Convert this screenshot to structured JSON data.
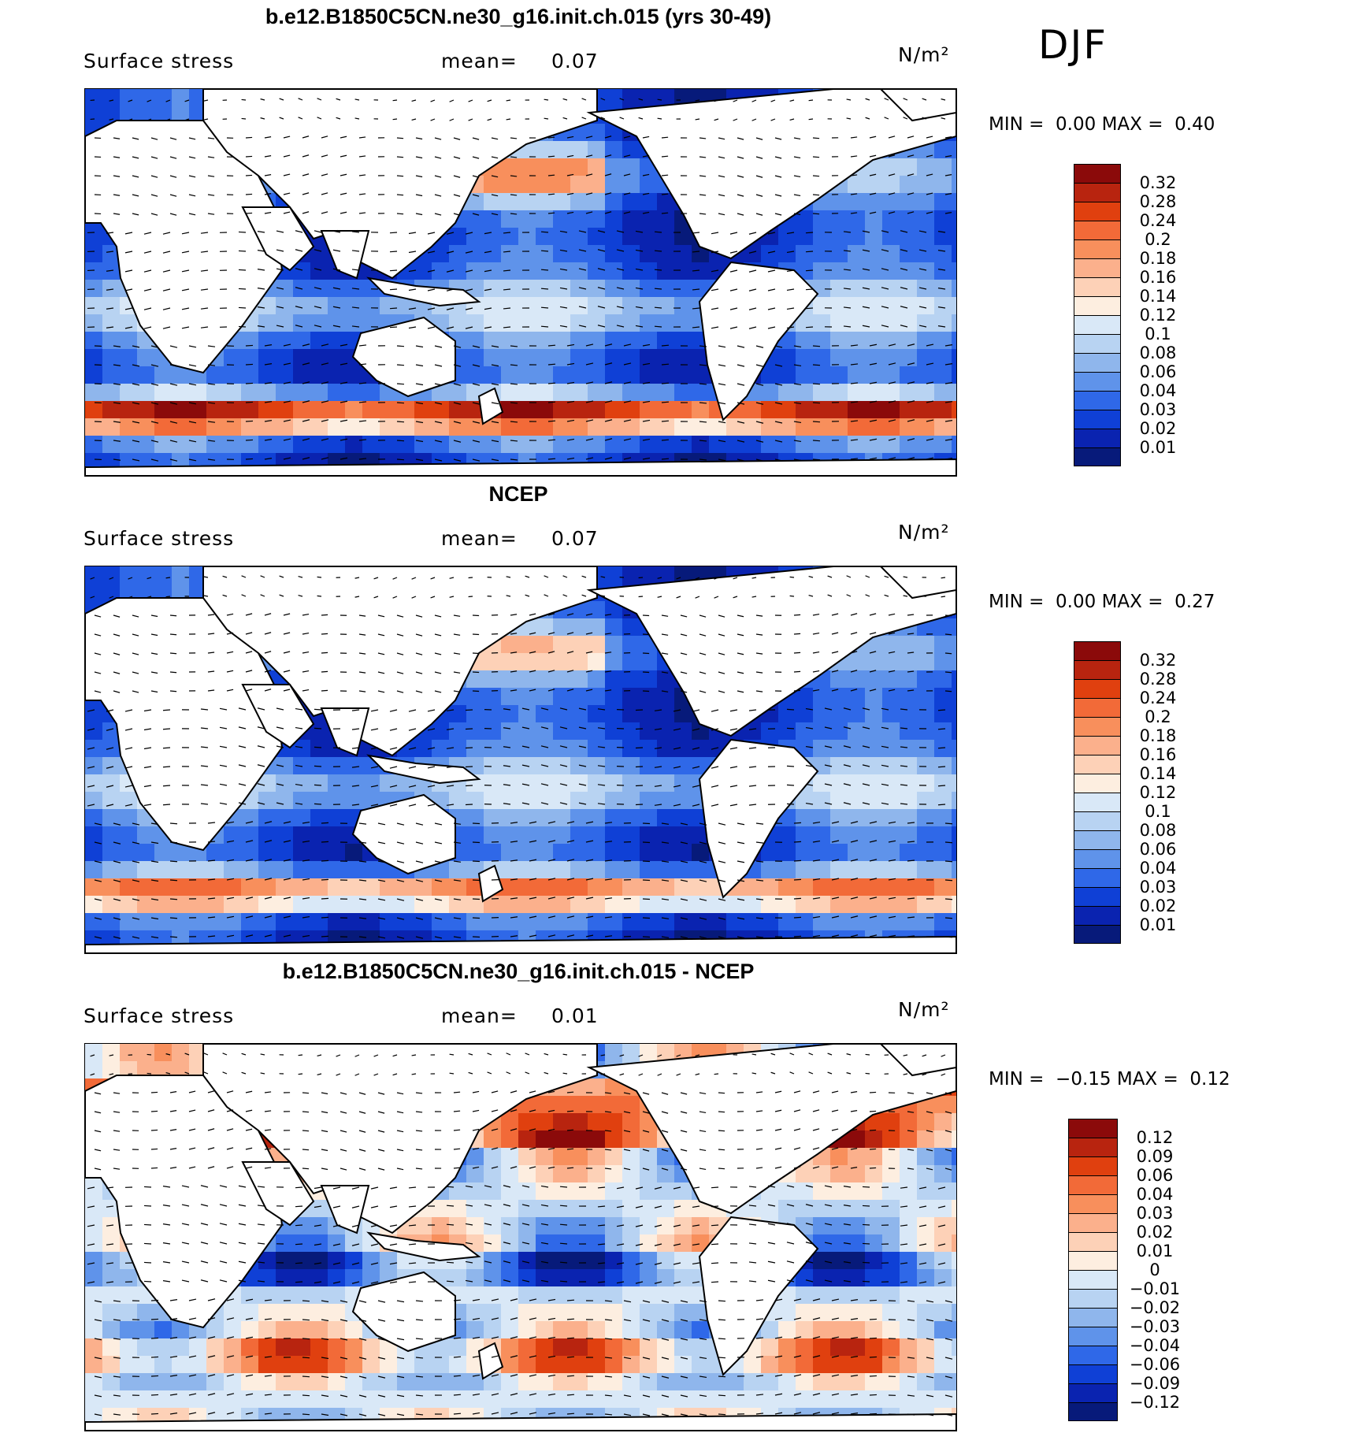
{
  "season": "DJF",
  "chart_data": [
    {
      "type": "heatmap",
      "title": "b.e12.B1850C5CN.ne30_g16.init.ch.015 (yrs 30-49)",
      "variable": "Surface stress",
      "mean_label": "mean=",
      "mean": "0.07",
      "units": "N/m²",
      "min_label": "MIN =",
      "min": "0.00",
      "max_label": "MAX =",
      "max": "0.40",
      "colorbar_ticks": [
        "0.32",
        "0.28",
        "0.24",
        "0.2",
        "0.18",
        "0.16",
        "0.14",
        "0.12",
        "0.1",
        "0.08",
        "0.06",
        "0.04",
        "0.03",
        "0.02",
        "0.01"
      ],
      "colorbar_colors": [
        "#8b0a0a",
        "#b8240f",
        "#e0400f",
        "#f26a38",
        "#f88f5c",
        "#fbb08c",
        "#fdd1b7",
        "#fdeee0",
        "#d9e8f7",
        "#b8d3f2",
        "#8fb6ec",
        "#5f93ea",
        "#2f68e8",
        "#0f40d6",
        "#0a23b0",
        "#071a7a"
      ]
    },
    {
      "type": "heatmap",
      "title": "NCEP",
      "variable": "Surface stress",
      "mean_label": "mean=",
      "mean": "0.07",
      "units": "N/m²",
      "min_label": "MIN =",
      "min": "0.00",
      "max_label": "MAX =",
      "max": "0.27",
      "colorbar_ticks": [
        "0.32",
        "0.28",
        "0.24",
        "0.2",
        "0.18",
        "0.16",
        "0.14",
        "0.12",
        "0.1",
        "0.08",
        "0.06",
        "0.04",
        "0.03",
        "0.02",
        "0.01"
      ],
      "colorbar_colors": [
        "#8b0a0a",
        "#b8240f",
        "#e0400f",
        "#f26a38",
        "#f88f5c",
        "#fbb08c",
        "#fdd1b7",
        "#fdeee0",
        "#d9e8f7",
        "#b8d3f2",
        "#8fb6ec",
        "#5f93ea",
        "#2f68e8",
        "#0f40d6",
        "#0a23b0",
        "#071a7a"
      ]
    },
    {
      "type": "heatmap",
      "title": "b.e12.B1850C5CN.ne30_g16.init.ch.015 - NCEP",
      "variable": "Surface stress",
      "mean_label": "mean=",
      "mean": "0.01",
      "units": "N/m²",
      "min_label": "MIN =",
      "min": "−0.15",
      "max_label": "MAX =",
      "max": "0.12",
      "colorbar_ticks": [
        "0.12",
        "0.09",
        "0.06",
        "0.04",
        "0.03",
        "0.02",
        "0.01",
        "0",
        "−0.01",
        "−0.02",
        "−0.03",
        "−0.04",
        "−0.06",
        "−0.09",
        "−0.12"
      ],
      "colorbar_colors": [
        "#8b0a0a",
        "#b8240f",
        "#e0400f",
        "#f26a38",
        "#f88f5c",
        "#fbb08c",
        "#fdd1b7",
        "#fdeee0",
        "#d9e8f7",
        "#b8d3f2",
        "#8fb6ec",
        "#5f93ea",
        "#2f68e8",
        "#0f40d6",
        "#0a23b0",
        "#071a7a"
      ]
    }
  ]
}
